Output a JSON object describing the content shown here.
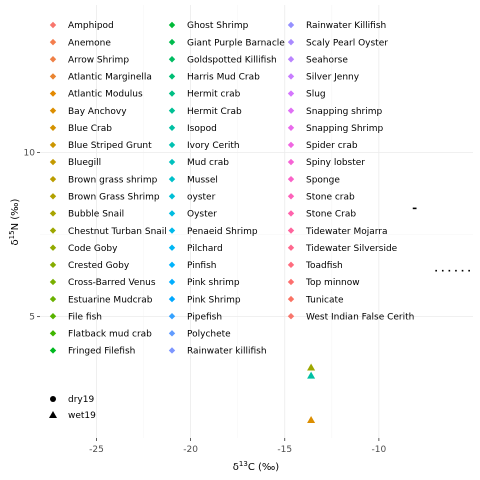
{
  "chart_data": {
    "type": "scatter",
    "title": "",
    "xlabel": {
      "base": "δ",
      "sup": "13",
      "rest": "C (‰)"
    },
    "ylabel": {
      "base": "δ",
      "sup": "15",
      "rest": "N (‰)"
    },
    "xlim": [
      -28,
      -5
    ],
    "ylim": [
      1.3,
      14.5
    ],
    "xticks": [
      {
        "value": -25,
        "label": "-25"
      },
      {
        "value": -20,
        "label": "-20"
      },
      {
        "value": -15,
        "label": "-15"
      },
      {
        "value": -10,
        "label": "-10"
      }
    ],
    "yticks": [
      {
        "value": 5,
        "label": "5"
      },
      {
        "value": 10,
        "label": "10"
      }
    ],
    "grid": true,
    "legend_position": "overlay-top-left",
    "species_legend": [
      {
        "name": "Amphipod",
        "color": "#F8766D"
      },
      {
        "name": "Anemone",
        "color": "#F47D4D"
      },
      {
        "name": "Arrow Shrimp",
        "color": "#EF8046"
      },
      {
        "name": "Atlantic Marginella",
        "color": "#E98432"
      },
      {
        "name": "Atlantic Modulus",
        "color": "#E38900"
      },
      {
        "name": "Bay Anchovy",
        "color": "#DC8E00"
      },
      {
        "name": "Blue Crab",
        "color": "#D49200"
      },
      {
        "name": "Blue Striped Grunt",
        "color": "#CC9600"
      },
      {
        "name": "Bluegill",
        "color": "#C49A00"
      },
      {
        "name": "Brown grass shrimp",
        "color": "#BB9D00"
      },
      {
        "name": "Brown Grass Shrimp",
        "color": "#B2A100"
      },
      {
        "name": "Bubble Snail",
        "color": "#A8A400"
      },
      {
        "name": "Chestnut Turban Snail",
        "color": "#9DA700"
      },
      {
        "name": "Code Goby",
        "color": "#92AA00"
      },
      {
        "name": "Crested Goby",
        "color": "#86AC00"
      },
      {
        "name": "Cross-Barred Venus",
        "color": "#79AF00"
      },
      {
        "name": "Estuarine Mudcrab",
        "color": "#6AB100"
      },
      {
        "name": "File fish",
        "color": "#58B300"
      },
      {
        "name": "Flatback mud crab",
        "color": "#3FB500"
      },
      {
        "name": "Fringed Filefish",
        "color": "#00B81F"
      },
      {
        "name": "Ghost Shrimp",
        "color": "#00BA38"
      },
      {
        "name": "Giant Purple Barnacle",
        "color": "#00BB4E"
      },
      {
        "name": "Goldspotted Killifish",
        "color": "#00BC62"
      },
      {
        "name": "Harris Mud Crab",
        "color": "#00BE74"
      },
      {
        "name": "Hermit crab",
        "color": "#00BF84"
      },
      {
        "name": "Hermit Crab",
        "color": "#00C094"
      },
      {
        "name": "Isopod",
        "color": "#00C0A3"
      },
      {
        "name": "Ivory Cerith",
        "color": "#00C1B1"
      },
      {
        "name": "Mud crab",
        "color": "#00C1BE"
      },
      {
        "name": "Mussel",
        "color": "#00C0CA"
      },
      {
        "name": "oyster",
        "color": "#00BFD6"
      },
      {
        "name": "Oyster",
        "color": "#00BDE1"
      },
      {
        "name": "Penaeid Shrimp",
        "color": "#00BAEB"
      },
      {
        "name": "Pilchard",
        "color": "#00B7F4"
      },
      {
        "name": "Pinfish",
        "color": "#00B3FC"
      },
      {
        "name": "Pink shrimp",
        "color": "#00AEFF"
      },
      {
        "name": "Pink Shrimp",
        "color": "#00A8FF"
      },
      {
        "name": "Pipefish",
        "color": "#35A2FF"
      },
      {
        "name": "Polychete",
        "color": "#619CFF"
      },
      {
        "name": "Rainwater killifish",
        "color": "#7D96FF"
      },
      {
        "name": "Rainwater Killifish",
        "color": "#9590FF"
      },
      {
        "name": "Scaly Pearl Oyster",
        "color": "#A98AFF"
      },
      {
        "name": "Seahorse",
        "color": "#BA84FF"
      },
      {
        "name": "Silver Jenny",
        "color": "#C87DFF"
      },
      {
        "name": "Slug",
        "color": "#D576FE"
      },
      {
        "name": "Snapping shrimp",
        "color": "#E070F5"
      },
      {
        "name": "Snapping Shrimp",
        "color": "#E96AEC"
      },
      {
        "name": "Spider crab",
        "color": "#F066E1"
      },
      {
        "name": "Spiny lobster",
        "color": "#F663D5"
      },
      {
        "name": "Sponge",
        "color": "#FA62C8"
      },
      {
        "name": "Stone crab",
        "color": "#FD62BA"
      },
      {
        "name": "Stone Crab",
        "color": "#FF63AC"
      },
      {
        "name": "Tidewater Mojarra",
        "color": "#FF659D"
      },
      {
        "name": "Tidewater Silverside",
        "color": "#FF688E"
      },
      {
        "name": "Toadfish",
        "color": "#FF6C7E"
      },
      {
        "name": "Top minnow",
        "color": "#FD6F6E"
      },
      {
        "name": "Tunicate",
        "color": "#FA7263"
      },
      {
        "name": "West Indian False Cerith",
        "color": "#F8766D"
      }
    ],
    "shape_legend": [
      {
        "name": "dry19",
        "shape": "circle"
      },
      {
        "name": "wet19",
        "shape": "triangle"
      }
    ],
    "points": [
      {
        "x": -13.6,
        "y": 3.45,
        "shape": "triangle",
        "color": "#9DA700"
      },
      {
        "x": -13.6,
        "y": 3.2,
        "shape": "triangle",
        "color": "#00C0A3"
      },
      {
        "x": -13.6,
        "y": 1.85,
        "shape": "triangle",
        "color": "#DC8E00"
      }
    ],
    "errorbars_h": [
      {
        "y": 8.3,
        "xmin": -8.2,
        "xmax": -8.0,
        "style": "solid"
      },
      {
        "y": 6.4,
        "xmin": -7.0,
        "xmax": -5.0,
        "style": "dotted"
      }
    ]
  }
}
